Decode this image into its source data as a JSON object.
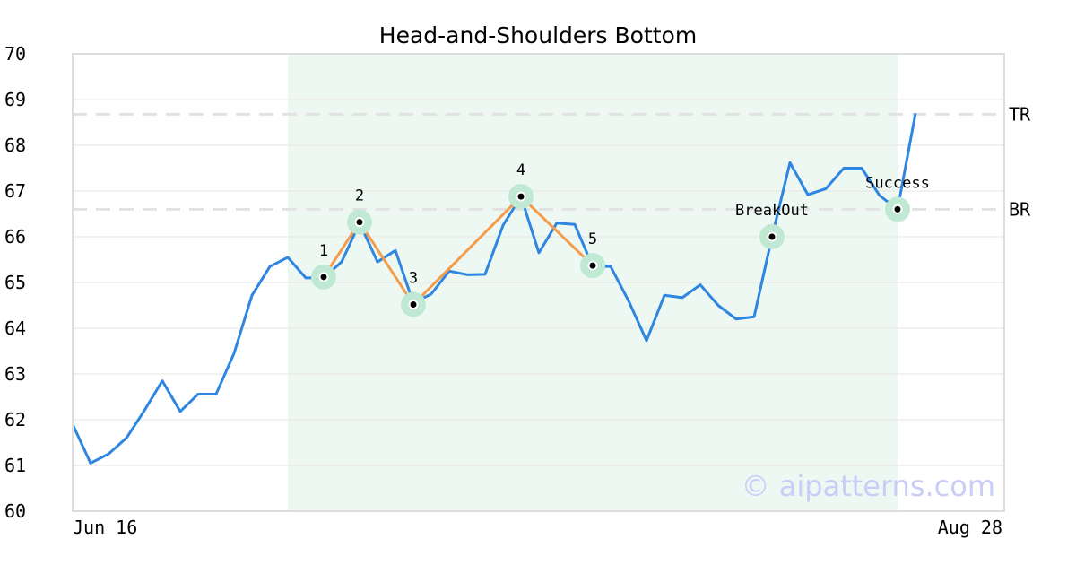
{
  "chart_data": {
    "type": "line",
    "title": "Head-and-Shoulders Bottom",
    "watermark": "© aipatterns.com",
    "ylim": [
      60,
      70
    ],
    "y_ticks": [
      "60",
      "61",
      "62",
      "63",
      "64",
      "65",
      "66",
      "67",
      "68",
      "69",
      "70"
    ],
    "x_tick_labels": [
      "Jun 16",
      "Aug 28"
    ],
    "grid": true,
    "colors": {
      "price": "#2f86e0",
      "pattern": "#f39c4a",
      "highlight": "#eef8f3",
      "marker_halo": "#bfe9d2",
      "level_line": "#e2e2e2",
      "frame": "#dddddd"
    },
    "series": [
      {
        "values": [
          61.9,
          61.05,
          61.25,
          61.6,
          62.2,
          62.85,
          62.18,
          62.56,
          62.56,
          63.45,
          64.72,
          65.35,
          65.55,
          65.1,
          65.1,
          65.45,
          66.3,
          65.45,
          65.7,
          64.55,
          64.75,
          65.25,
          65.17,
          65.18,
          66.25,
          66.88,
          65.65,
          66.3,
          66.27,
          65.35,
          65.35,
          64.6,
          63.73,
          64.72,
          64.67,
          64.95,
          64.5,
          64.2,
          64.25,
          66.0,
          67.62,
          66.92,
          67.05,
          67.5,
          67.5,
          66.9,
          66.6,
          68.7
        ]
      }
    ],
    "pattern_points": [
      {
        "label": "1",
        "index": 14,
        "value": 65.12
      },
      {
        "label": "2",
        "index": 16,
        "value": 66.32
      },
      {
        "label": "3",
        "index": 19,
        "value": 64.52
      },
      {
        "label": "4",
        "index": 25,
        "value": 66.88
      },
      {
        "label": "5",
        "index": 29,
        "value": 65.37
      }
    ],
    "events": [
      {
        "label": "BreakOut",
        "index": 39,
        "value": 66.0
      },
      {
        "label": "Success",
        "index": 46,
        "value": 66.6
      }
    ],
    "levels": [
      {
        "label": "TR",
        "value": 68.68
      },
      {
        "label": "BR",
        "value": 66.6
      }
    ],
    "highlight_range": [
      12,
      46
    ]
  }
}
